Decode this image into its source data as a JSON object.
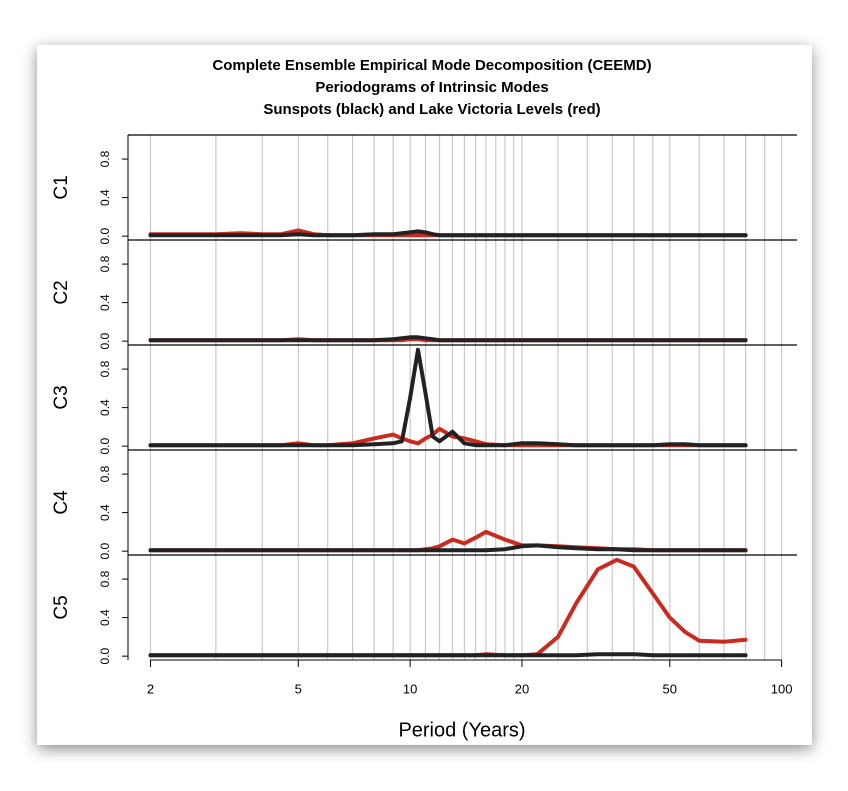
{
  "chart_data": {
    "type": "line",
    "title": [
      "Complete Ensemble Empirical Mode Decomposition (CEEMD)",
      "Periodograms of Intrinsic Modes",
      "Sunspots (black) and Lake Victoria Levels (red)"
    ],
    "xlabel": "Period (Years)",
    "xlog": true,
    "xlim": [
      1.74,
      110
    ],
    "xticks": [
      2,
      5,
      10,
      20,
      50,
      100
    ],
    "xgrid": [
      2,
      3,
      4,
      5,
      6,
      7,
      8,
      9,
      10,
      11,
      12,
      13,
      14,
      15,
      16,
      17,
      18,
      19,
      20,
      25,
      30,
      35,
      40,
      45,
      50,
      60,
      70,
      80,
      90,
      100
    ],
    "x": [
      2,
      2.5,
      3,
      3.5,
      4,
      4.5,
      5,
      5.5,
      6,
      7,
      8,
      9,
      9.5,
      10,
      10.5,
      11,
      11.5,
      12,
      13,
      14,
      15,
      16,
      18,
      20,
      22,
      25,
      28,
      32,
      36,
      40,
      45,
      50,
      55,
      60,
      70,
      80
    ],
    "panels": [
      {
        "ylabel": "C1",
        "ylim": [
          -0.04,
          1.05
        ],
        "yticks": [
          {
            "value": 0,
            "label": "0.0"
          },
          0.4,
          0.8
        ],
        "series": [
          {
            "color": "#cc2a1e",
            "values": [
              0.02,
              0.02,
              0.02,
              0.03,
              0.02,
              0.02,
              0.06,
              0.02,
              0.01,
              0.01,
              0.01,
              0.01,
              0.01,
              0.01,
              0.01,
              0.01,
              0.01,
              0.01,
              0.01,
              0.01,
              0.01,
              0.01,
              0.01,
              0.01,
              0.01,
              0.01,
              0.01,
              0.01,
              0.01,
              0.01,
              0.01,
              0.01,
              0.01,
              0.01,
              0.01,
              0.01
            ]
          },
          {
            "color": "#222222",
            "values": [
              0.01,
              0.01,
              0.01,
              0.01,
              0.01,
              0.01,
              0.02,
              0.01,
              0.01,
              0.01,
              0.02,
              0.02,
              0.03,
              0.04,
              0.05,
              0.04,
              0.02,
              0.01,
              0.01,
              0.01,
              0.01,
              0.01,
              0.01,
              0.01,
              0.01,
              0.01,
              0.01,
              0.01,
              0.01,
              0.01,
              0.01,
              0.01,
              0.01,
              0.01,
              0.01,
              0.01
            ]
          }
        ]
      },
      {
        "ylabel": "C2",
        "ylim": [
          -0.04,
          1.05
        ],
        "yticks": [
          {
            "value": 0,
            "label": "0.0"
          },
          0.4,
          0.8
        ],
        "series": [
          {
            "color": "#cc2a1e",
            "values": [
              0.01,
              0.01,
              0.01,
              0.01,
              0.01,
              0.01,
              0.02,
              0.01,
              0.01,
              0.01,
              0.01,
              0.01,
              0.01,
              0.02,
              0.02,
              0.01,
              0.01,
              0.01,
              0.01,
              0.01,
              0.01,
              0.01,
              0.01,
              0.01,
              0.01,
              0.01,
              0.01,
              0.01,
              0.01,
              0.01,
              0.01,
              0.01,
              0.01,
              0.01,
              0.01,
              0.01
            ]
          },
          {
            "color": "#222222",
            "values": [
              0.01,
              0.01,
              0.01,
              0.01,
              0.01,
              0.01,
              0.01,
              0.01,
              0.01,
              0.01,
              0.01,
              0.02,
              0.03,
              0.04,
              0.04,
              0.03,
              0.02,
              0.01,
              0.01,
              0.01,
              0.01,
              0.01,
              0.01,
              0.01,
              0.01,
              0.01,
              0.01,
              0.01,
              0.01,
              0.01,
              0.01,
              0.01,
              0.01,
              0.01,
              0.01,
              0.01
            ]
          }
        ]
      },
      {
        "ylabel": "C3",
        "ylim": [
          -0.04,
          1.05
        ],
        "yticks": [
          {
            "value": 0,
            "label": "0.0"
          },
          0.4,
          0.8
        ],
        "series": [
          {
            "color": "#cc2a1e",
            "values": [
              0.01,
              0.01,
              0.01,
              0.01,
              0.01,
              0.01,
              0.03,
              0.01,
              0.01,
              0.03,
              0.08,
              0.12,
              0.08,
              0.05,
              0.03,
              0.08,
              0.12,
              0.18,
              0.1,
              0.08,
              0.05,
              0.02,
              0.01,
              0.01,
              0.01,
              0.01,
              0.01,
              0.01,
              0.01,
              0.01,
              0.01,
              0.01,
              0.01,
              0.01,
              0.01,
              0.01
            ]
          },
          {
            "color": "#222222",
            "values": [
              0.01,
              0.01,
              0.01,
              0.01,
              0.01,
              0.01,
              0.01,
              0.01,
              0.01,
              0.01,
              0.02,
              0.03,
              0.05,
              0.5,
              1.0,
              0.55,
              0.1,
              0.05,
              0.15,
              0.03,
              0.01,
              0.01,
              0.01,
              0.03,
              0.03,
              0.02,
              0.01,
              0.01,
              0.01,
              0.01,
              0.01,
              0.02,
              0.02,
              0.01,
              0.01,
              0.01
            ]
          }
        ]
      },
      {
        "ylabel": "C4",
        "ylim": [
          -0.04,
          1.05
        ],
        "yticks": [
          {
            "value": 0,
            "label": "0.0"
          },
          0.4,
          0.8
        ],
        "series": [
          {
            "color": "#cc2a1e",
            "values": [
              0.01,
              0.01,
              0.01,
              0.01,
              0.01,
              0.01,
              0.01,
              0.01,
              0.01,
              0.01,
              0.01,
              0.01,
              0.01,
              0.01,
              0.01,
              0.02,
              0.03,
              0.05,
              0.12,
              0.08,
              0.14,
              0.2,
              0.12,
              0.06,
              0.06,
              0.05,
              0.04,
              0.03,
              0.02,
              0.02,
              0.01,
              0.01,
              0.01,
              0.01,
              0.01,
              0.01
            ]
          },
          {
            "color": "#222222",
            "values": [
              0.01,
              0.01,
              0.01,
              0.01,
              0.01,
              0.01,
              0.01,
              0.01,
              0.01,
              0.01,
              0.01,
              0.01,
              0.01,
              0.01,
              0.01,
              0.01,
              0.01,
              0.01,
              0.01,
              0.01,
              0.01,
              0.01,
              0.02,
              0.05,
              0.06,
              0.04,
              0.03,
              0.02,
              0.02,
              0.01,
              0.01,
              0.01,
              0.01,
              0.01,
              0.01,
              0.01
            ]
          }
        ]
      },
      {
        "ylabel": "C5",
        "ylim": [
          -0.04,
          1.05
        ],
        "yticks": [
          {
            "value": 0,
            "label": "0.0"
          },
          0.4,
          0.8
        ],
        "series": [
          {
            "color": "#cc2a1e",
            "values": [
              0.01,
              0.01,
              0.01,
              0.01,
              0.01,
              0.01,
              0.01,
              0.01,
              0.01,
              0.01,
              0.01,
              0.01,
              0.01,
              0.01,
              0.01,
              0.01,
              0.01,
              0.01,
              0.01,
              0.01,
              0.01,
              0.02,
              0.01,
              0.01,
              0.02,
              0.2,
              0.55,
              0.9,
              1.0,
              0.93,
              0.65,
              0.4,
              0.25,
              0.16,
              0.15,
              0.17
            ]
          },
          {
            "color": "#222222",
            "values": [
              0.01,
              0.01,
              0.01,
              0.01,
              0.01,
              0.01,
              0.01,
              0.01,
              0.01,
              0.01,
              0.01,
              0.01,
              0.01,
              0.01,
              0.01,
              0.01,
              0.01,
              0.01,
              0.01,
              0.01,
              0.01,
              0.01,
              0.01,
              0.01,
              0.01,
              0.01,
              0.01,
              0.02,
              0.02,
              0.02,
              0.01,
              0.01,
              0.01,
              0.01,
              0.01,
              0.01
            ]
          }
        ]
      }
    ]
  }
}
